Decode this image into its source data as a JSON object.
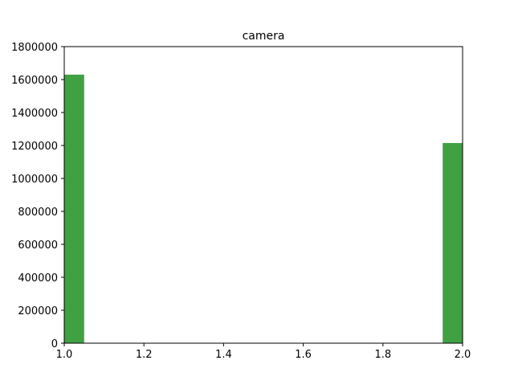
{
  "chart_data": {
    "type": "bar",
    "title": "camera",
    "xlabel": "",
    "ylabel": "",
    "xlim": [
      1.0,
      2.0
    ],
    "ylim": [
      0,
      1800000
    ],
    "xticks": [
      "1.0",
      "1.2",
      "1.4",
      "1.6",
      "1.8",
      "2.0"
    ],
    "yticks": [
      "0",
      "200000",
      "400000",
      "600000",
      "800000",
      "1000000",
      "1200000",
      "1400000",
      "1600000",
      "1800000"
    ],
    "bins": [
      {
        "x0": 1.0,
        "x1": 1.05,
        "value": 1630000
      },
      {
        "x0": 1.95,
        "x1": 2.0,
        "value": 1215000
      }
    ],
    "bar_color": "#3fa142",
    "bar_opacity": 1.0,
    "grid": false,
    "legend": "none"
  }
}
